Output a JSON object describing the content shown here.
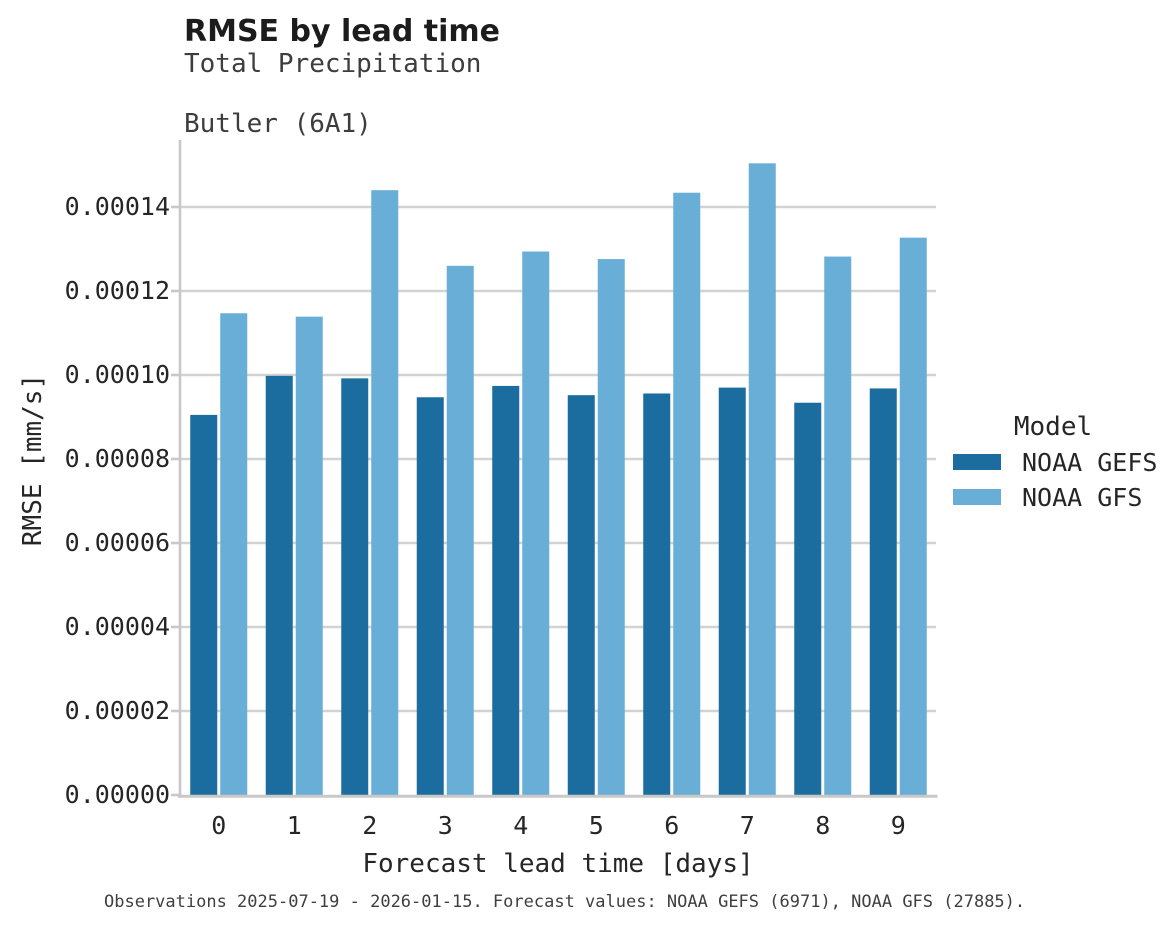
{
  "header": {
    "title": "RMSE by lead time",
    "subtitle1": "Total Precipitation",
    "subtitle2": "Butler (6A1)"
  },
  "axes": {
    "xlabel": "Forecast lead time [days]",
    "ylabel": "RMSE [mm/s]"
  },
  "caption": "Observations 2025-07-19 - 2026-01-15. Forecast values: NOAA GEFS (6971), NOAA GFS (27885).",
  "legend": {
    "title": "Model",
    "entries": [
      {
        "label": "NOAA GEFS",
        "color": "#1a6d9e"
      },
      {
        "label": "NOAA GFS",
        "color": "#69aed7"
      }
    ]
  },
  "colors": {
    "background": "#ffffff",
    "grid": "#d2d2d2",
    "spine": "#c8c8c8",
    "dark_blue": "#1a6d9e",
    "light_blue": "#69aed7"
  },
  "chart_data": {
    "type": "bar",
    "title": "RMSE by lead time",
    "subtitle": "Total Precipitation — Butler (6A1)",
    "xlabel": "Forecast lead time [days]",
    "ylabel": "RMSE [mm/s]",
    "categories": [
      "0",
      "1",
      "2",
      "3",
      "4",
      "5",
      "6",
      "7",
      "8",
      "9"
    ],
    "series": [
      {
        "name": "NOAA GEFS",
        "color": "#1a6d9e",
        "values": [
          9.05e-05,
          9.98e-05,
          9.92e-05,
          9.47e-05,
          9.74e-05,
          9.52e-05,
          9.56e-05,
          9.7e-05,
          9.34e-05,
          9.68e-05
        ]
      },
      {
        "name": "NOAA GFS",
        "color": "#69aed7",
        "values": [
          0.0001147,
          0.0001139,
          0.000144,
          0.000126,
          0.0001294,
          0.0001276,
          0.0001434,
          0.0001504,
          0.0001282,
          0.0001327
        ]
      }
    ],
    "ylim": [
      0,
      0.000155
    ],
    "y_ticks": [
      0.0,
      2e-05,
      4e-05,
      6e-05,
      8e-05,
      0.0001,
      0.00012,
      0.00014
    ],
    "y_tick_labels": [
      "0.00000",
      "0.00002",
      "0.00004",
      "0.00006",
      "0.00008",
      "0.00010",
      "0.00012",
      "0.00014"
    ],
    "grid": true,
    "legend_position": "right",
    "legend_title": "Model"
  }
}
